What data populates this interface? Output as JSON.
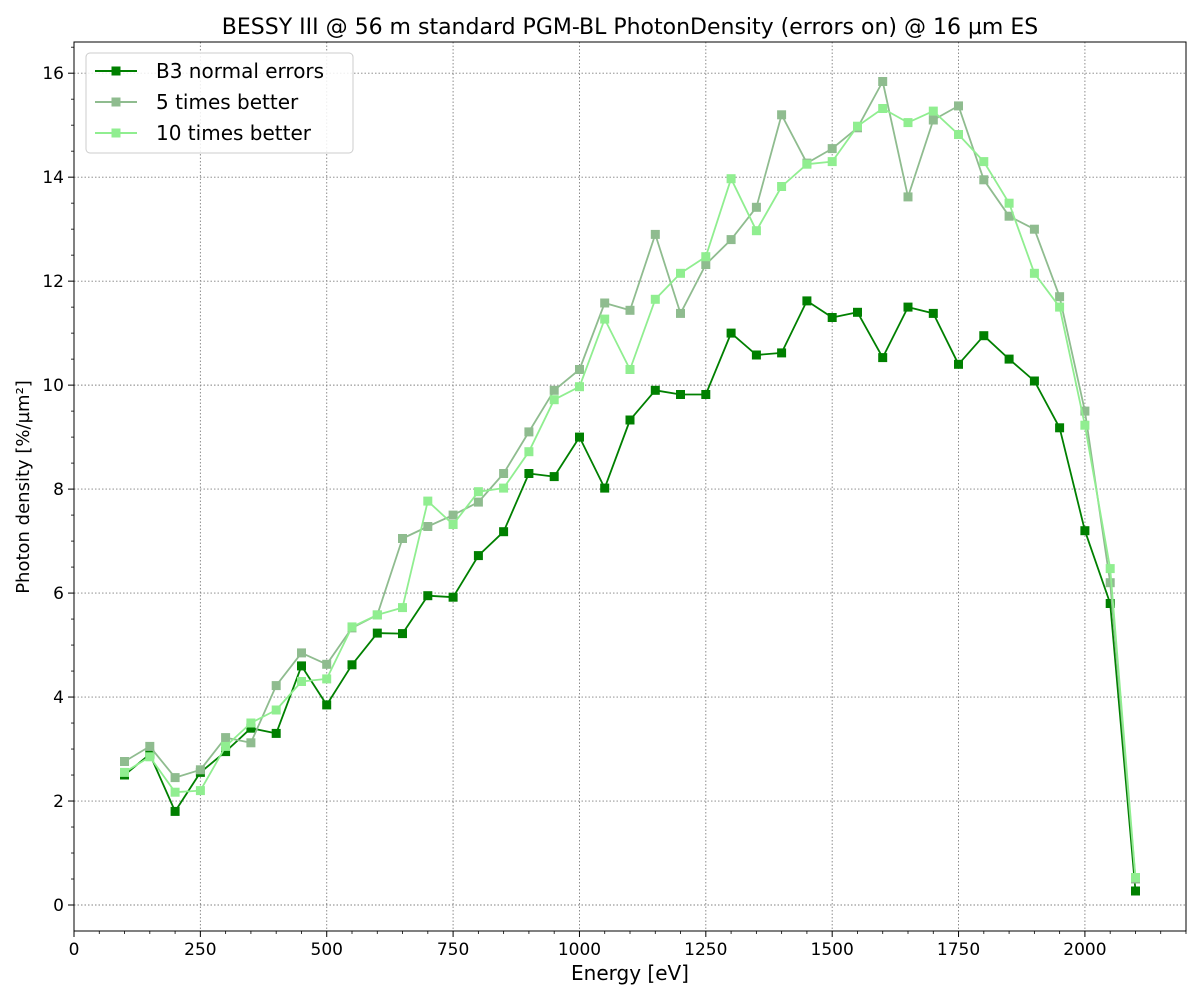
{
  "chart_data": {
    "type": "line",
    "title": "BESSY III @ 56 m standard PGM-BL PhotonDensity (errors on) @ 16 µm ES",
    "xlabel": "Energy [eV]",
    "ylabel": "Photon density [%/µm²]",
    "xlim": [
      0,
      2200
    ],
    "ylim": [
      -0.5,
      16.6
    ],
    "xticks": [
      0,
      250,
      500,
      750,
      1000,
      1250,
      1500,
      1750,
      2000
    ],
    "yticks": [
      0,
      2,
      4,
      6,
      8,
      10,
      12,
      14,
      16
    ],
    "grid": true,
    "legend_position": "top-left",
    "x": [
      100,
      150,
      200,
      250,
      300,
      350,
      400,
      450,
      500,
      550,
      600,
      650,
      700,
      750,
      800,
      850,
      900,
      950,
      1000,
      1050,
      1100,
      1150,
      1200,
      1250,
      1300,
      1350,
      1400,
      1450,
      1500,
      1550,
      1600,
      1650,
      1700,
      1750,
      1800,
      1850,
      1900,
      1950,
      2000,
      2050,
      2100
    ],
    "series": [
      {
        "name": "B3 normal errors",
        "color": "#008000",
        "marker": "square",
        "values": [
          2.5,
          2.9,
          1.8,
          2.55,
          2.95,
          3.4,
          3.3,
          4.6,
          3.85,
          4.62,
          5.23,
          5.22,
          5.95,
          5.92,
          6.72,
          7.18,
          8.3,
          8.24,
          9.0,
          8.02,
          9.33,
          9.9,
          9.82,
          9.82,
          11.0,
          10.58,
          10.62,
          11.62,
          11.3,
          11.4,
          10.53,
          11.5,
          11.38,
          10.4,
          10.95,
          10.5,
          10.08,
          9.18,
          7.2,
          5.8,
          0.27
        ]
      },
      {
        "name": "5 times better",
        "color": "#8fbc8f",
        "marker": "square",
        "values": [
          2.76,
          3.05,
          2.45,
          2.6,
          3.22,
          3.12,
          4.22,
          4.85,
          4.63,
          5.33,
          5.58,
          7.05,
          7.28,
          7.5,
          7.75,
          8.3,
          9.1,
          9.9,
          10.3,
          11.58,
          11.44,
          12.9,
          11.38,
          12.32,
          12.8,
          13.42,
          15.2,
          14.27,
          14.55,
          14.95,
          15.84,
          13.62,
          15.1,
          15.37,
          13.95,
          13.25,
          13.0,
          11.7,
          9.5,
          6.2,
          0.5
        ]
      },
      {
        "name": "10 times better",
        "color": "#90ee90",
        "marker": "square",
        "values": [
          2.55,
          2.85,
          2.17,
          2.2,
          3.05,
          3.5,
          3.75,
          4.3,
          4.35,
          5.35,
          5.58,
          5.72,
          7.77,
          7.32,
          7.95,
          8.02,
          8.72,
          9.72,
          9.97,
          11.27,
          10.3,
          11.65,
          12.15,
          12.47,
          13.97,
          12.97,
          13.82,
          14.25,
          14.3,
          14.98,
          15.32,
          15.05,
          15.27,
          14.82,
          14.3,
          13.5,
          12.15,
          11.5,
          9.23,
          6.47,
          0.53
        ]
      }
    ]
  }
}
